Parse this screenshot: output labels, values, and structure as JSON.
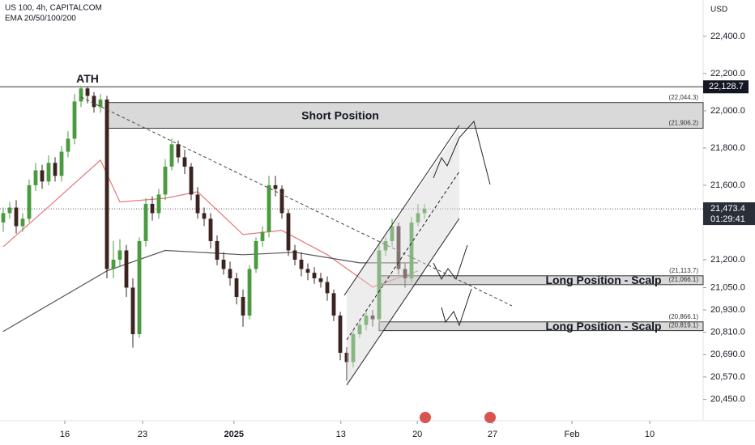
{
  "chart_data": {
    "type": "candlestick",
    "title": "US 100, 4h, CAPITALCOM",
    "subtitle": "EMA 20/50/100/200",
    "y_axis_label": "USD",
    "up_color": "#4a9a3f",
    "down_color": "#3b2420",
    "open": [
      21400,
      21450,
      21480,
      21380,
      21420,
      21600,
      21680,
      21620,
      21720,
      21650,
      21780,
      21850,
      22050,
      22120,
      22080,
      22020,
      22060,
      21150,
      21200,
      21250,
      21050,
      20800,
      21300,
      21500,
      21450,
      21550,
      21700,
      21820,
      21750,
      21700,
      21550,
      21450,
      21420,
      21300,
      21200,
      21150,
      21100,
      21000,
      20900,
      21150,
      21300,
      21350,
      21600,
      21580,
      21450,
      21250,
      21200,
      21150,
      21130,
      21100,
      21080,
      21020,
      20900,
      20700,
      20650,
      20800,
      20850,
      20900,
      20880,
      21250,
      21300,
      21380,
      21150,
      21100,
      21400,
      21450
    ],
    "high": [
      21480,
      21510,
      21520,
      21450,
      21630,
      21720,
      21710,
      21760,
      21750,
      21810,
      21890,
      22090,
      22133,
      22130,
      22100,
      22090,
      22080,
      21300,
      21310,
      21280,
      21100,
      21320,
      21530,
      21540,
      21580,
      21740,
      21850,
      21840,
      21790,
      21720,
      21590,
      21480,
      21450,
      21330,
      21240,
      21190,
      21130,
      21040,
      21170,
      21320,
      21380,
      21650,
      21650,
      21600,
      21470,
      21280,
      21240,
      21180,
      21160,
      21130,
      21110,
      21040,
      20920,
      20730,
      20820,
      20880,
      20930,
      20930,
      21280,
      21320,
      21420,
      21400,
      21180,
      21430,
      21500,
      21500
    ],
    "low": [
      21350,
      21420,
      21340,
      21350,
      21400,
      21570,
      21580,
      21600,
      21620,
      21620,
      21750,
      21820,
      22020,
      22040,
      21990,
      21990,
      21100,
      21100,
      21160,
      21000,
      20728,
      20780,
      21270,
      21410,
      21420,
      21520,
      21680,
      21720,
      21660,
      21520,
      21420,
      21380,
      21260,
      21170,
      21120,
      21060,
      20960,
      20840,
      20880,
      21130,
      21270,
      21320,
      21540,
      21420,
      21220,
      21170,
      21110,
      21090,
      21070,
      21050,
      20980,
      20870,
      20660,
      20550,
      20620,
      20780,
      20820,
      20840,
      20860,
      21220,
      21270,
      21120,
      21050,
      21080,
      21380,
      21420
    ],
    "close": [
      21450,
      21480,
      21380,
      21420,
      21600,
      21680,
      21620,
      21720,
      21650,
      21780,
      21850,
      22050,
      22120,
      22080,
      22020,
      22060,
      21150,
      21200,
      21250,
      21050,
      20800,
      21300,
      21500,
      21450,
      21550,
      21700,
      21820,
      21750,
      21700,
      21550,
      21450,
      21420,
      21300,
      21200,
      21150,
      21100,
      21000,
      20900,
      21150,
      21300,
      21350,
      21600,
      21580,
      21450,
      21250,
      21200,
      21150,
      21130,
      21100,
      21080,
      21020,
      20900,
      20700,
      20650,
      20800,
      20850,
      20900,
      20880,
      21250,
      21300,
      21380,
      21150,
      21100,
      21400,
      21450,
      21473
    ],
    "ema": [
      {
        "color": "#e8757a",
        "x": [
          0,
          7,
          15,
          18,
          25,
          30,
          37,
          43,
          50,
          57,
          64
        ],
        "values": [
          21270,
          21485,
          21735,
          21510,
          21530,
          21565,
          21335,
          21357,
          21227,
          21053,
          21140
        ]
      },
      {
        "color": "#555555",
        "x": [
          0,
          16,
          25,
          37,
          45,
          55,
          64
        ],
        "values": [
          20815,
          21140,
          21250,
          21227,
          21240,
          21183,
          21183
        ]
      }
    ],
    "xlim": [
      -0.5,
      108
    ],
    "ylim": [
      20335,
      22595
    ],
    "xticks": [
      {
        "value": 9.5,
        "label": "16"
      },
      {
        "value": 21.5,
        "label": "23"
      },
      {
        "value": 35.6,
        "label": "2025"
      },
      {
        "value": 52.1,
        "label": "13"
      },
      {
        "value": 63.9,
        "label": "20"
      },
      {
        "value": 75.5,
        "label": "27"
      },
      {
        "value": 87.75,
        "label": "Feb"
      },
      {
        "value": 99.75,
        "label": "10"
      }
    ],
    "yticks": [
      {
        "value": 22400,
        "label": "22,400.0"
      },
      {
        "value": 22200,
        "label": "22,200.0"
      },
      {
        "value": 22000,
        "label": "22,000.0"
      },
      {
        "value": 21800,
        "label": "21,800.0"
      },
      {
        "value": 21600,
        "label": "21,600.0"
      },
      {
        "value": 21200,
        "label": "21,200.0"
      },
      {
        "value": 21050,
        "label": "21,050.0"
      },
      {
        "value": 20930,
        "label": "20,930.0"
      },
      {
        "value": 20810,
        "label": "20,810.0"
      },
      {
        "value": 20690,
        "label": "20,690.0"
      },
      {
        "value": 20570,
        "label": "20,570.0"
      },
      {
        "value": 20450,
        "label": "20,450.0"
      }
    ],
    "level": {
      "label": "ATH",
      "price": {
        "value": 22128.7,
        "label": "22,128.7"
      }
    },
    "zones": [
      {
        "label": "Short Position",
        "x_start": 16,
        "high": {
          "value": 22044.3,
          "label": "(22,044.3)"
        },
        "low": {
          "value": 21906.2,
          "label": "(21,906.2)"
        }
      },
      {
        "label": "Long Position - Scalp",
        "x_start": 58,
        "high": {
          "value": 21113.7,
          "label": "(21,113.7)"
        },
        "low": {
          "value": 21066.1,
          "label": "(21,066.1)"
        }
      },
      {
        "label": "Long Position - Scalp",
        "x_start": 58,
        "high": {
          "value": 20866.1,
          "label": "(20,866.1)"
        },
        "low": {
          "value": 20819.1,
          "label": "(20,819.1)"
        }
      }
    ],
    "last_price": {
      "value": 21473.4,
      "label": "21,473.4"
    },
    "countdown": "01:29:41"
  }
}
